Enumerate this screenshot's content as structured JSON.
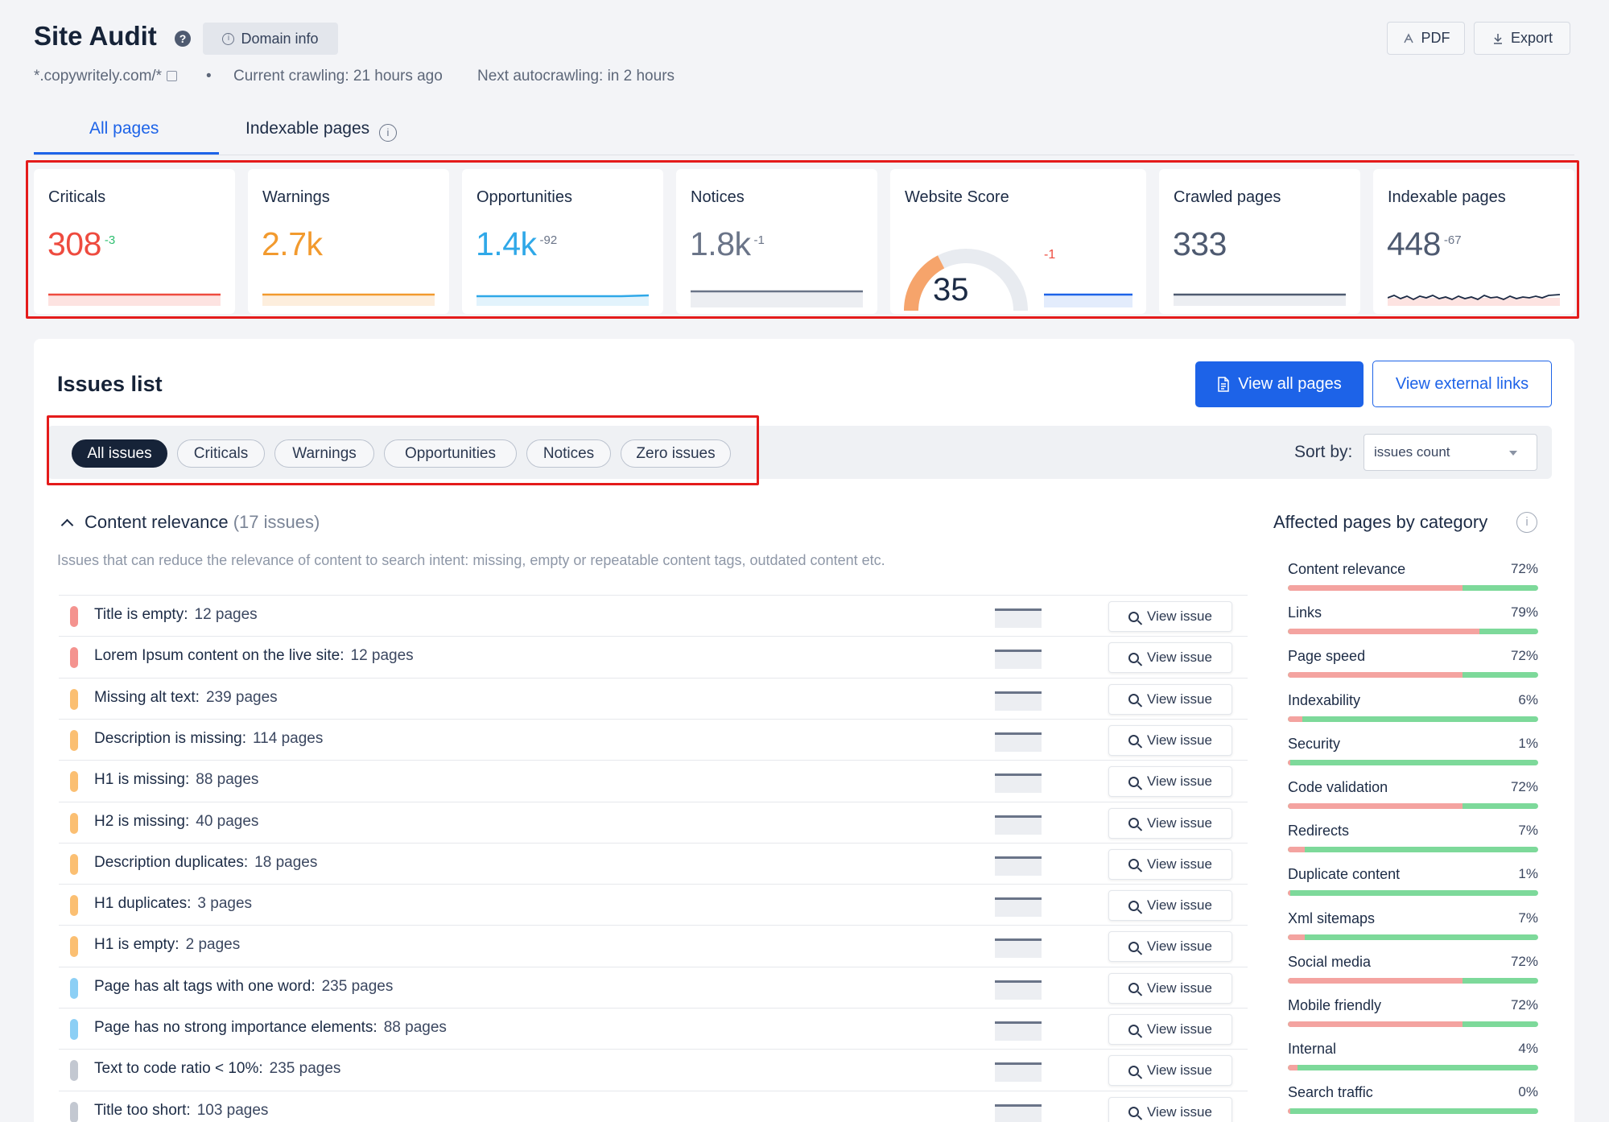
{
  "header": {
    "title": "Site Audit",
    "help_glyph": "?",
    "domain_info_label": "Domain info",
    "info_glyph": "i",
    "domain": "*.copywritely.com/*",
    "bullet": "•",
    "current_crawling": "Current crawling: 21 hours ago",
    "next_autocrawling": "Next autocrawling: in 2 hours",
    "pdf_label": "PDF",
    "export_label": "Export"
  },
  "tabs": [
    {
      "label": "All pages",
      "active": true
    },
    {
      "label": "Indexable pages",
      "active": false
    }
  ],
  "stats": {
    "criticals": {
      "label": "Criticals",
      "value": "308",
      "delta": "-3",
      "color": "#ee4b3f"
    },
    "warnings": {
      "label": "Warnings",
      "value": "2.7k",
      "delta": "",
      "color": "#f29a2e"
    },
    "opportunities": {
      "label": "Opportunities",
      "value": "1.4k",
      "delta": "-92",
      "color": "#2fa8e8"
    },
    "notices": {
      "label": "Notices",
      "value": "1.8k",
      "delta": "-1",
      "color": "#6a7488"
    },
    "website_score": {
      "label": "Website Score",
      "value": "35",
      "delta": "-1",
      "score_fraction": 0.35
    },
    "crawled_pages": {
      "label": "Crawled pages",
      "value": "333"
    },
    "indexable_pages": {
      "label": "Indexable pages",
      "value": "448",
      "delta": "-67"
    }
  },
  "issues": {
    "title": "Issues list",
    "view_all_pages": "View all pages",
    "view_external_links": "View external links",
    "filters": [
      {
        "label": "All issues",
        "active": true
      },
      {
        "label": "Criticals",
        "active": false
      },
      {
        "label": "Warnings",
        "active": false
      },
      {
        "label": "Opportunities",
        "active": false
      },
      {
        "label": "Notices",
        "active": false
      },
      {
        "label": "Zero issues",
        "active": false
      }
    ],
    "sort_label": "Sort by:",
    "sort_value": "issues count",
    "section": {
      "name": "Content relevance",
      "count": "(17 issues)",
      "description": "Issues that can reduce the relevance of content to search intent: missing, empty or repeatable content tags, outdated content etc."
    },
    "view_issue_label": "View issue",
    "rows": [
      {
        "name": "Title is empty:",
        "count": "12 pages",
        "severity": "critical"
      },
      {
        "name": "Lorem Ipsum content on the live site:",
        "count": "12 pages",
        "severity": "critical"
      },
      {
        "name": "Missing alt text:",
        "count": "239 pages",
        "severity": "warning"
      },
      {
        "name": "Description is missing:",
        "count": "114 pages",
        "severity": "warning"
      },
      {
        "name": "H1 is missing:",
        "count": "88 pages",
        "severity": "warning"
      },
      {
        "name": "H2 is missing:",
        "count": "40 pages",
        "severity": "warning"
      },
      {
        "name": "Description duplicates:",
        "count": "18 pages",
        "severity": "warning"
      },
      {
        "name": "H1 duplicates:",
        "count": "3 pages",
        "severity": "warning"
      },
      {
        "name": "H1 is empty:",
        "count": "2 pages",
        "severity": "warning"
      },
      {
        "name": "Page has alt tags with one word:",
        "count": "235 pages",
        "severity": "opportunity"
      },
      {
        "name": "Page has no strong importance elements:",
        "count": "88 pages",
        "severity": "opportunity"
      },
      {
        "name": "Text to code ratio < 10%:",
        "count": "235 pages",
        "severity": "notice"
      },
      {
        "name": "Title too short:",
        "count": "103 pages",
        "severity": "notice"
      }
    ]
  },
  "affected": {
    "title": "Affected pages by category",
    "info_glyph": "i",
    "categories": [
      {
        "name": "Content relevance",
        "pct": "72%",
        "value": 72
      },
      {
        "name": "Links",
        "pct": "79%",
        "value": 79
      },
      {
        "name": "Page speed",
        "pct": "72%",
        "value": 72
      },
      {
        "name": "Indexability",
        "pct": "6%",
        "value": 6
      },
      {
        "name": "Security",
        "pct": "1%",
        "value": 1
      },
      {
        "name": "Code validation",
        "pct": "72%",
        "value": 72
      },
      {
        "name": "Redirects",
        "pct": "7%",
        "value": 7
      },
      {
        "name": "Duplicate content",
        "pct": "1%",
        "value": 1
      },
      {
        "name": "Xml sitemaps",
        "pct": "7%",
        "value": 7
      },
      {
        "name": "Social media",
        "pct": "72%",
        "value": 72
      },
      {
        "name": "Mobile friendly",
        "pct": "72%",
        "value": 72
      },
      {
        "name": "Internal",
        "pct": "4%",
        "value": 4
      },
      {
        "name": "Search traffic",
        "pct": "0%",
        "value": 0
      }
    ]
  },
  "colors": {
    "accent": "#1d63e8",
    "critical": "#f4938f",
    "warning": "#fbbf72",
    "opportunity": "#8ccff5",
    "notice": "#c3c8d1",
    "annotation_box": "#e41b1b"
  }
}
